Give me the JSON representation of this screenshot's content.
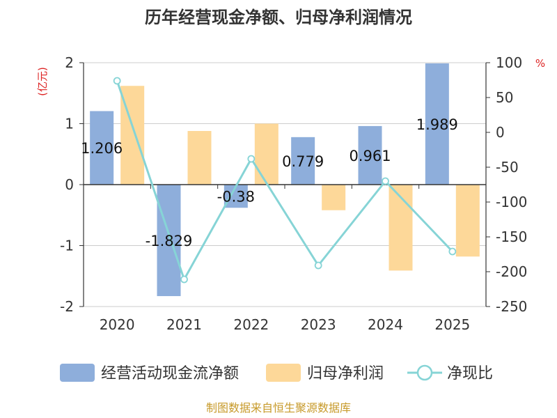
{
  "chart_data": {
    "type": "bar",
    "title": "历年经营现金净额、归母净利润情况",
    "categories": [
      "2020",
      "2021",
      "2022",
      "2023",
      "2024",
      "2025"
    ],
    "left_axis": {
      "unit": "(亿元)",
      "ylim": [
        -2,
        2
      ],
      "ticks": [
        "2",
        "1",
        "0",
        "-1",
        "-2"
      ],
      "tick_values": [
        2,
        1,
        0,
        -1,
        -2
      ]
    },
    "right_axis": {
      "unit": "%",
      "ylim": [
        -250,
        100
      ],
      "ticks": [
        "100",
        "50",
        "0",
        "-50",
        "-100",
        "-150",
        "-200",
        "-250"
      ],
      "tick_values": [
        100,
        50,
        0,
        -50,
        -100,
        -150,
        -200,
        -250
      ]
    },
    "series": [
      {
        "name": "经营活动现金流净额",
        "kind": "bar",
        "axis": "left",
        "color": "#8eaedb",
        "values": [
          1.206,
          -1.829,
          -0.38,
          0.779,
          0.961,
          1.989
        ],
        "labels": [
          "1.206",
          "-1.829",
          "-0.38",
          "0.779",
          "0.961",
          "1.989"
        ]
      },
      {
        "name": "归母净利润",
        "kind": "bar",
        "axis": "left",
        "color": "#fdd899",
        "values": [
          1.62,
          0.88,
          1.0,
          -0.42,
          -1.41,
          -1.18
        ]
      },
      {
        "name": "净现比",
        "kind": "line",
        "axis": "right",
        "color": "#86d4d6",
        "values": [
          74,
          -211,
          -38,
          -191,
          -70,
          -171
        ]
      }
    ],
    "source": "制图数据来自恒生聚源数据库"
  }
}
